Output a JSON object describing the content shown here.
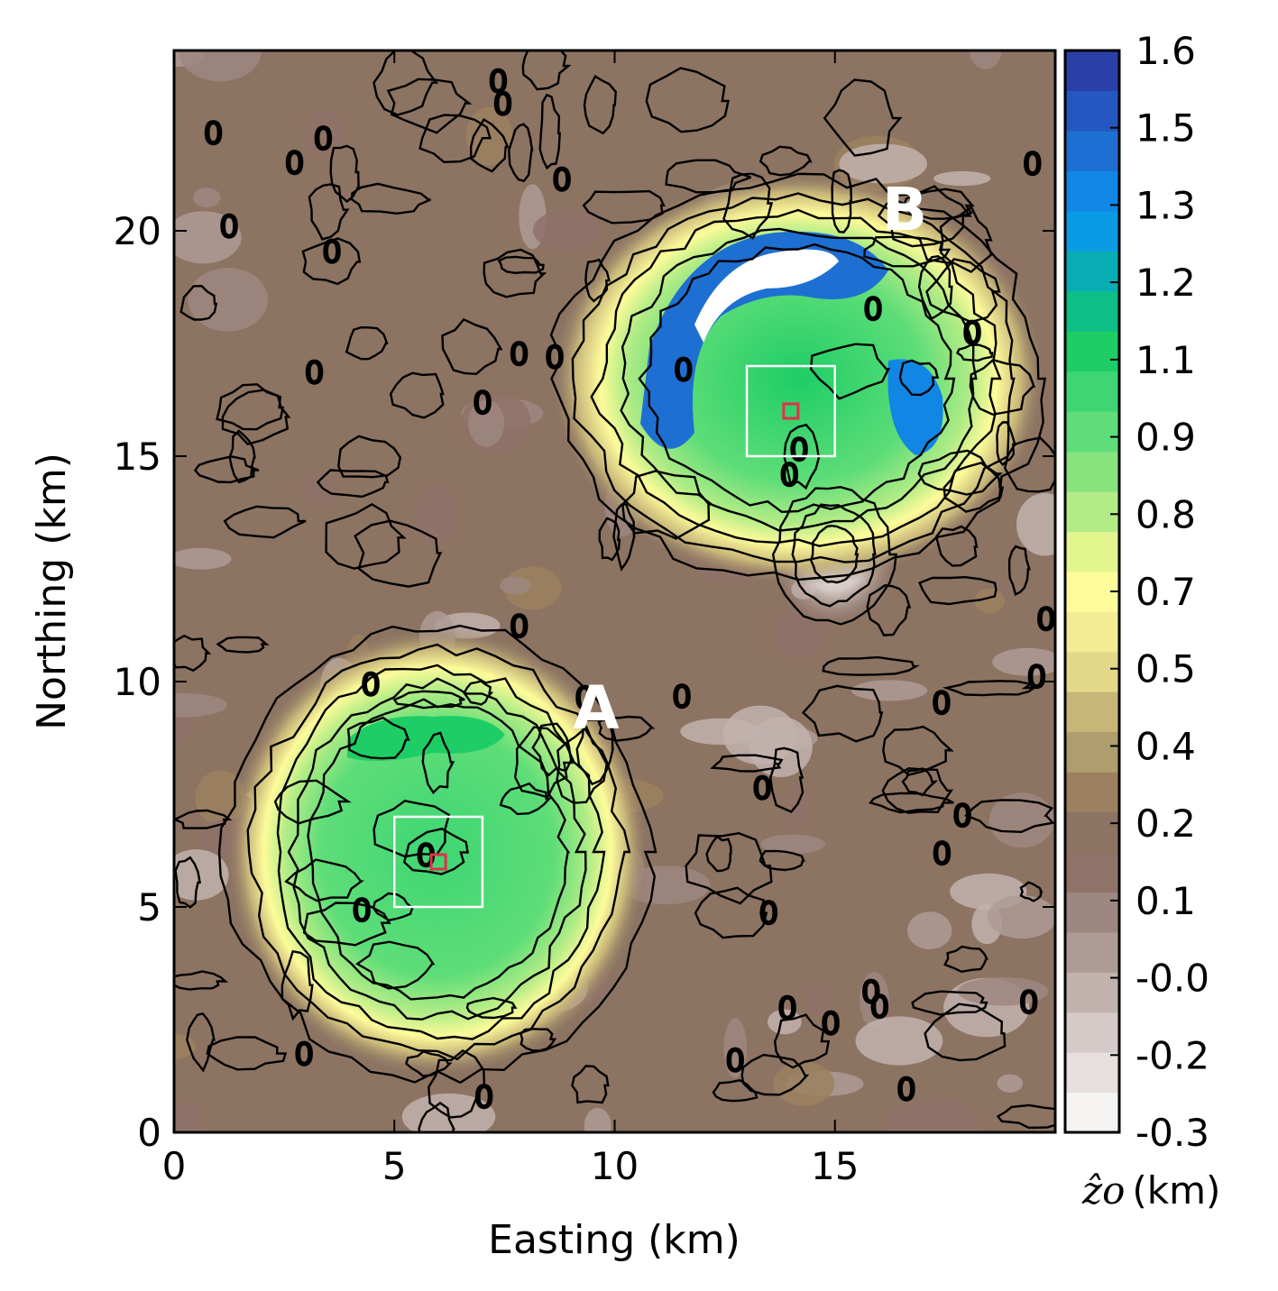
{
  "chart_data": {
    "type": "heatmap",
    "subtype": "filled-contour map with contour lines",
    "xlabel": "Easting (km)",
    "ylabel": "Northing (km)",
    "xlim": [
      0,
      20
    ],
    "ylim": [
      0,
      24
    ],
    "xticks": [
      0,
      5,
      10,
      15
    ],
    "yticks": [
      0,
      5,
      10,
      15,
      20
    ],
    "colorbar": {
      "label": "(km)",
      "label_symbol": "ẑo",
      "range": [
        -0.3,
        1.6
      ],
      "tick_labels": [
        "1.6",
        "1.5",
        "1.3",
        "1.2",
        "1.1",
        "0.9",
        "0.8",
        "0.7",
        "0.5",
        "0.4",
        "0.2",
        "0.1",
        "-0.0",
        "-0.2",
        "-0.3"
      ],
      "colors": [
        "#f4f3f1",
        "#e6dfdd",
        "#d5cac7",
        "#c2b2ae",
        "#ae9b96",
        "#9e8780",
        "#8f7268",
        "#8c7362",
        "#9b8160",
        "#b09d6d",
        "#c8b679",
        "#e3d88a",
        "#f3ec94",
        "#fdfb9a",
        "#e2f58e",
        "#b3ec86",
        "#86e37e",
        "#5edd78",
        "#3ed673",
        "#1ecd65",
        "#0dbf86",
        "#08adb4",
        "#0a9be4",
        "#1186e4",
        "#1e6fd2",
        "#2557c0",
        "#2a3fa8"
      ]
    },
    "anomalies": [
      {
        "name": "A",
        "center": [
          6,
          6
        ],
        "peak": 1.0
      },
      {
        "name": "B",
        "center": [
          14,
          16
        ],
        "peak": 1.6
      }
    ],
    "negative_anomaly": {
      "center": [
        15,
        12.5
      ],
      "value": -0.3
    },
    "contour_annotation": "0",
    "windows": [
      {
        "anomaly": "A",
        "outer": [
          5,
          5,
          7,
          7
        ],
        "center": [
          6,
          6
        ]
      },
      {
        "anomaly": "B",
        "outer": [
          13,
          15,
          15,
          17
        ],
        "center": [
          14,
          16
        ]
      }
    ]
  }
}
